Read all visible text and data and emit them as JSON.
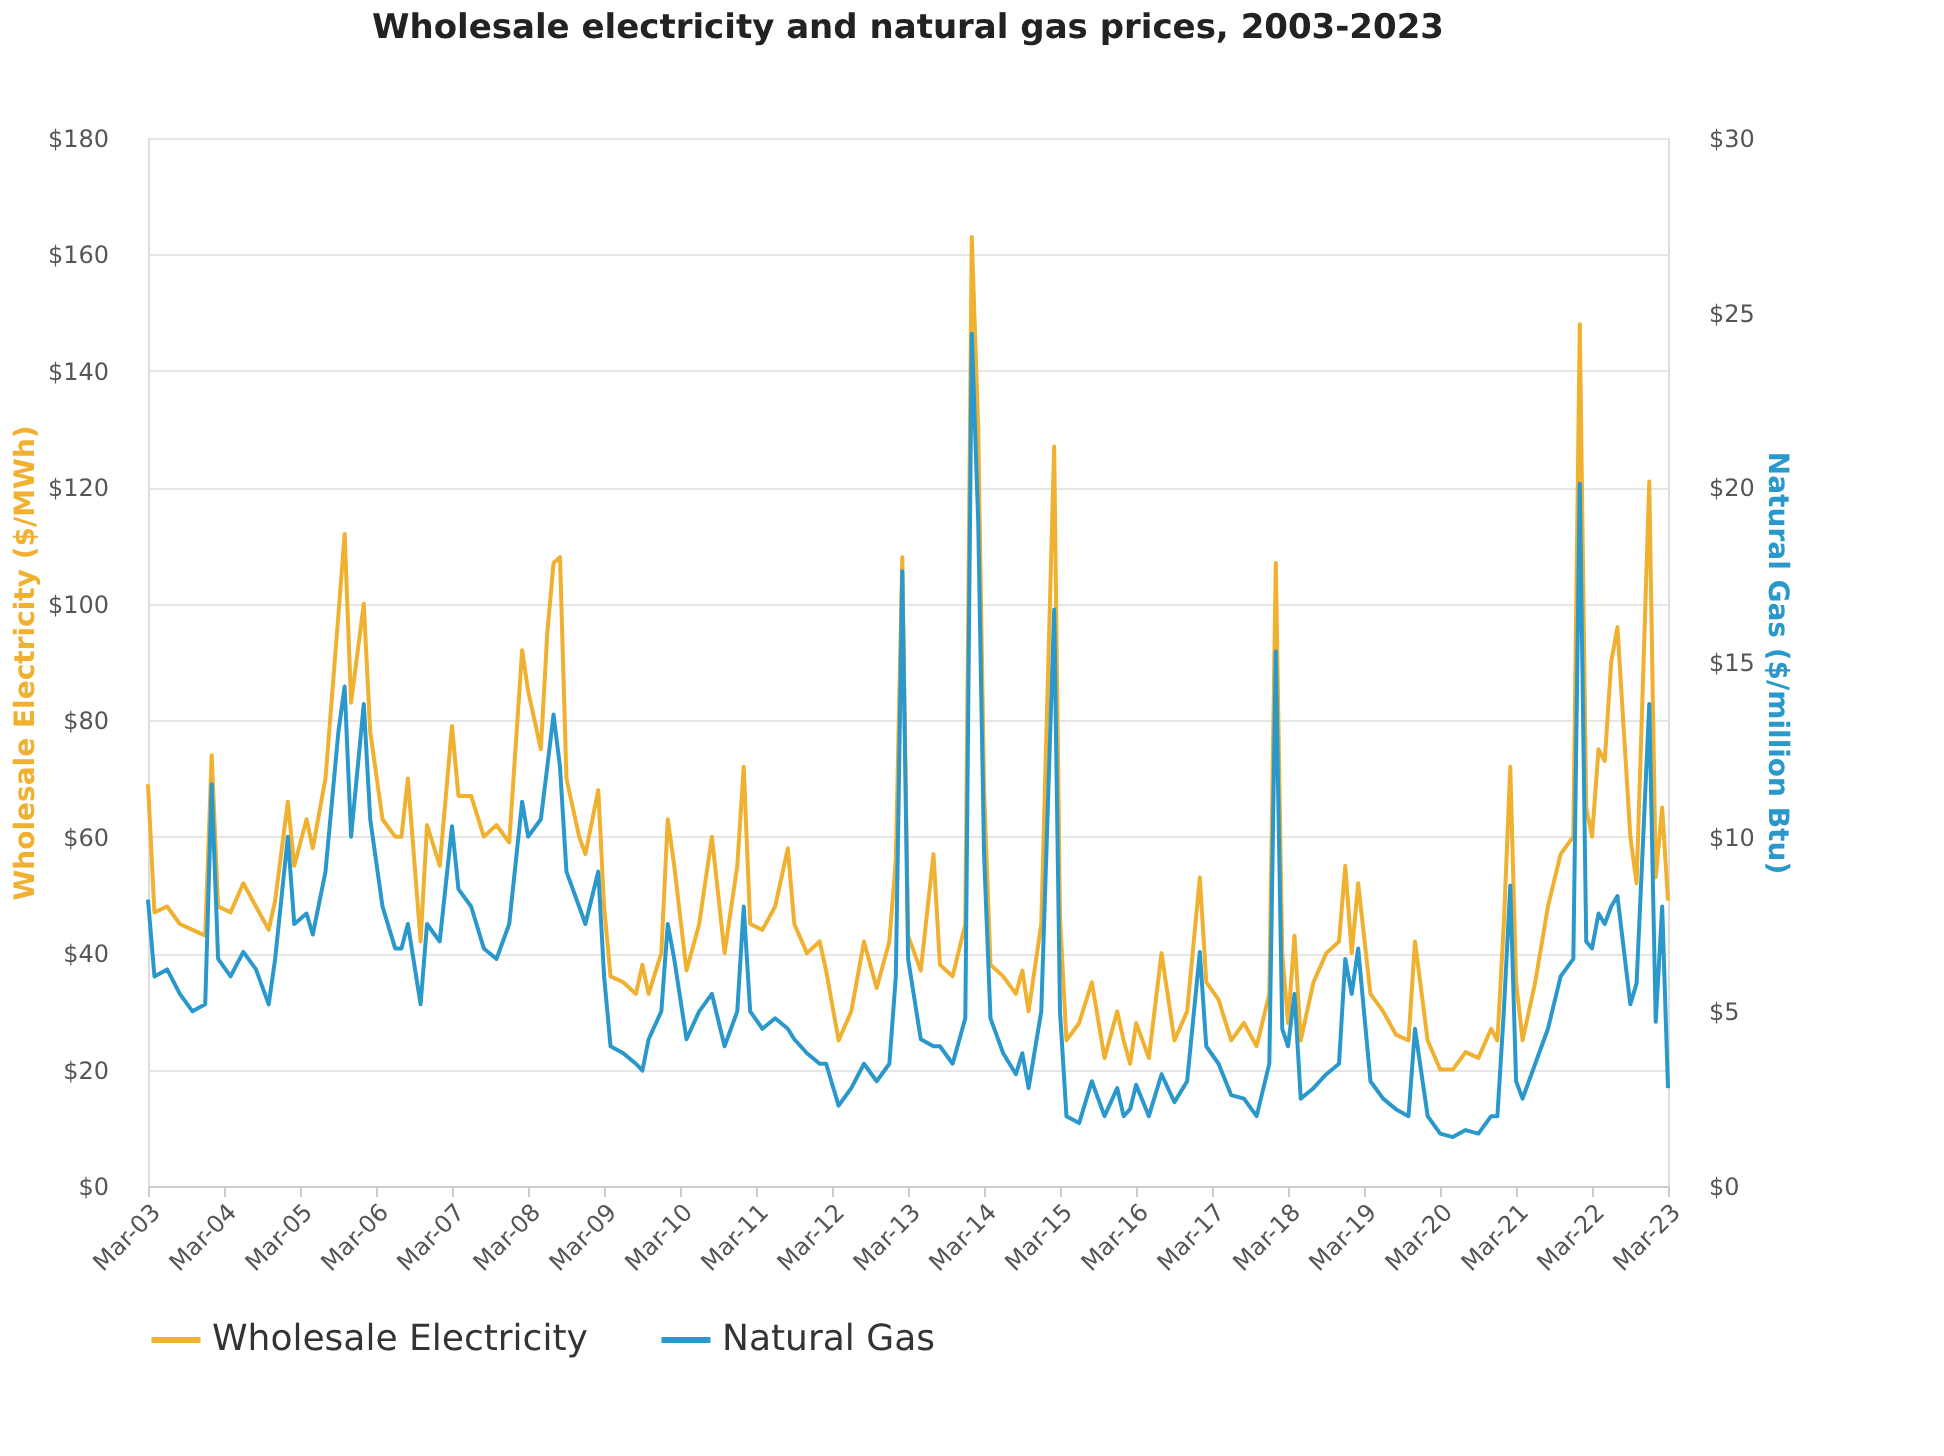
{
  "chart_data": {
    "type": "line",
    "title": "Wholesale electricity and natural gas prices, 2003-2023",
    "ylabel": "Wholesale Electricity ($/MWh)",
    "y2label": "Natural Gas ($/million Btu)",
    "x": [
      "2003-03",
      "2003-04",
      "2003-06",
      "2003-08",
      "2003-10",
      "2003-12",
      "2004-01",
      "2004-02",
      "2004-04",
      "2004-06",
      "2004-08",
      "2004-10",
      "2004-11",
      "2005-01",
      "2005-02",
      "2005-04",
      "2005-05",
      "2005-07",
      "2005-09",
      "2005-10",
      "2005-11",
      "2006-01",
      "2006-02",
      "2006-04",
      "2006-06",
      "2006-07",
      "2006-08",
      "2006-10",
      "2006-11",
      "2007-01",
      "2007-03",
      "2007-04",
      "2007-06",
      "2007-08",
      "2007-10",
      "2007-12",
      "2008-02",
      "2008-03",
      "2008-05",
      "2008-06",
      "2008-07",
      "2008-08",
      "2008-09",
      "2008-11",
      "2008-12",
      "2009-02",
      "2009-03",
      "2009-04",
      "2009-06",
      "2009-08",
      "2009-09",
      "2009-10",
      "2009-12",
      "2010-01",
      "2010-02",
      "2010-04",
      "2010-06",
      "2010-08",
      "2010-10",
      "2010-12",
      "2011-01",
      "2011-02",
      "2011-04",
      "2011-06",
      "2011-08",
      "2011-09",
      "2011-11",
      "2012-01",
      "2012-02",
      "2012-04",
      "2012-06",
      "2012-08",
      "2012-10",
      "2012-12",
      "2013-01",
      "2013-02",
      "2013-03",
      "2013-05",
      "2013-07",
      "2013-08",
      "2013-10",
      "2013-12",
      "2014-01",
      "2014-02",
      "2014-03",
      "2014-04",
      "2014-06",
      "2014-08",
      "2014-09",
      "2014-10",
      "2014-12",
      "2015-02",
      "2015-03",
      "2015-04",
      "2015-06",
      "2015-08",
      "2015-10",
      "2015-12",
      "2016-01",
      "2016-02",
      "2016-03",
      "2016-05",
      "2016-07",
      "2016-09",
      "2016-11",
      "2017-01",
      "2017-02",
      "2017-04",
      "2017-06",
      "2017-08",
      "2017-10",
      "2017-12",
      "2018-01",
      "2018-02",
      "2018-03",
      "2018-04",
      "2018-05",
      "2018-07",
      "2018-09",
      "2018-11",
      "2018-12",
      "2019-01",
      "2019-02",
      "2019-04",
      "2019-06",
      "2019-08",
      "2019-10",
      "2019-11",
      "2020-01",
      "2020-03",
      "2020-05",
      "2020-07",
      "2020-09",
      "2020-11",
      "2020-12",
      "2021-01",
      "2021-02",
      "2021-03",
      "2021-04",
      "2021-06",
      "2021-08",
      "2021-10",
      "2021-12",
      "2022-01",
      "2022-02",
      "2022-03",
      "2022-04",
      "2022-05",
      "2022-06",
      "2022-07",
      "2022-09",
      "2022-10",
      "2022-12",
      "2023-01",
      "2023-02",
      "2023-03"
    ],
    "series": [
      {
        "name": "Wholesale Electricity",
        "color": "#f0b030",
        "values": [
          69,
          47,
          48,
          45,
          44,
          43,
          74,
          48,
          47,
          52,
          48,
          44,
          49,
          66,
          55,
          63,
          58,
          70,
          98,
          112,
          83,
          100,
          78,
          63,
          60,
          60,
          70,
          42,
          62,
          55,
          79,
          67,
          67,
          60,
          62,
          59,
          92,
          85,
          75,
          95,
          107,
          108,
          70,
          60,
          57,
          68,
          48,
          36,
          35,
          33,
          38,
          33,
          40,
          63,
          55,
          37,
          45,
          60,
          40,
          55,
          72,
          45,
          44,
          48,
          58,
          45,
          40,
          42,
          37,
          25,
          30,
          42,
          34,
          42,
          56,
          108,
          43,
          37,
          57,
          38,
          36,
          45,
          163,
          130,
          68,
          38,
          36,
          33,
          37,
          30,
          45,
          127,
          46,
          25,
          28,
          35,
          22,
          30,
          25,
          21,
          28,
          22,
          40,
          25,
          30,
          53,
          35,
          32,
          25,
          28,
          24,
          33,
          107,
          40,
          28,
          43,
          25,
          35,
          40,
          42,
          55,
          40,
          52,
          33,
          30,
          26,
          25,
          42,
          25,
          20,
          20,
          23,
          22,
          27,
          25,
          45,
          72,
          35,
          25,
          35,
          48,
          57,
          60,
          148,
          65,
          60,
          75,
          73,
          90,
          96,
          60,
          52,
          121,
          53,
          65,
          49
        ]
      },
      {
        "name": "Natural Gas",
        "color": "#2b98cc",
        "axis": "y2",
        "values": [
          8.2,
          6.0,
          6.2,
          5.5,
          5.0,
          5.2,
          11.5,
          6.5,
          6.0,
          6.7,
          6.2,
          5.2,
          6.5,
          10.0,
          7.5,
          7.8,
          7.2,
          9.0,
          13.0,
          14.3,
          10.0,
          13.8,
          10.5,
          8.0,
          6.8,
          6.8,
          7.5,
          5.2,
          7.5,
          7.0,
          10.3,
          8.5,
          8.0,
          6.8,
          6.5,
          7.5,
          11.0,
          10.0,
          10.5,
          12.0,
          13.5,
          12.0,
          9.0,
          8.0,
          7.5,
          9.0,
          6.0,
          4.0,
          3.8,
          3.5,
          3.3,
          4.2,
          5.0,
          7.5,
          6.5,
          4.2,
          5.0,
          5.5,
          4.0,
          5.0,
          8.0,
          5.0,
          4.5,
          4.8,
          4.5,
          4.2,
          3.8,
          3.5,
          3.5,
          2.3,
          2.8,
          3.5,
          3.0,
          3.5,
          6.0,
          17.6,
          6.5,
          4.2,
          4.0,
          4.0,
          3.5,
          4.8,
          24.4,
          19.0,
          9.5,
          4.8,
          3.8,
          3.2,
          3.8,
          2.8,
          5.0,
          16.5,
          5.0,
          2.0,
          1.8,
          3.0,
          2.0,
          2.8,
          2.0,
          2.2,
          2.9,
          2.0,
          3.2,
          2.4,
          3.0,
          6.7,
          4.0,
          3.5,
          2.6,
          2.5,
          2.0,
          3.5,
          15.3,
          4.5,
          4.0,
          5.5,
          2.5,
          2.8,
          3.2,
          3.5,
          6.5,
          5.5,
          6.8,
          3.0,
          2.5,
          2.2,
          2.0,
          4.5,
          2.0,
          1.5,
          1.4,
          1.6,
          1.5,
          2.0,
          2.0,
          5.0,
          8.6,
          3.0,
          2.5,
          3.5,
          4.5,
          6.0,
          6.5,
          20.1,
          7.0,
          6.8,
          7.8,
          7.5,
          8.0,
          8.3,
          5.2,
          5.8,
          13.8,
          4.7,
          8.0,
          2.8
        ]
      }
    ],
    "xlim": [
      "2003-03",
      "2023-03"
    ],
    "xticks": [
      {
        "value": "2003-03",
        "label": "Mar-03"
      },
      {
        "value": "2004-03",
        "label": "Mar-04"
      },
      {
        "value": "2005-03",
        "label": "Mar-05"
      },
      {
        "value": "2006-03",
        "label": "Mar-06"
      },
      {
        "value": "2007-03",
        "label": "Mar-07"
      },
      {
        "value": "2008-03",
        "label": "Mar-08"
      },
      {
        "value": "2009-03",
        "label": "Mar-09"
      },
      {
        "value": "2010-03",
        "label": "Mar-10"
      },
      {
        "value": "2011-03",
        "label": "Mar-11"
      },
      {
        "value": "2012-03",
        "label": "Mar-12"
      },
      {
        "value": "2013-03",
        "label": "Mar-13"
      },
      {
        "value": "2014-03",
        "label": "Mar-14"
      },
      {
        "value": "2015-03",
        "label": "Mar-15"
      },
      {
        "value": "2016-03",
        "label": "Mar-16"
      },
      {
        "value": "2017-03",
        "label": "Mar-17"
      },
      {
        "value": "2018-03",
        "label": "Mar-18"
      },
      {
        "value": "2019-03",
        "label": "Mar-19"
      },
      {
        "value": "2020-03",
        "label": "Mar-20"
      },
      {
        "value": "2021-03",
        "label": "Mar-21"
      },
      {
        "value": "2022-03",
        "label": "Mar-22"
      },
      {
        "value": "2023-03",
        "label": "Mar-23"
      }
    ],
    "ylim": [
      0,
      180
    ],
    "yticks": [
      {
        "value": 0,
        "label": "$0"
      },
      {
        "value": 20,
        "label": "$20"
      },
      {
        "value": 40,
        "label": "$40"
      },
      {
        "value": 60,
        "label": "$60"
      },
      {
        "value": 80,
        "label": "$80"
      },
      {
        "value": 100,
        "label": "$100"
      },
      {
        "value": 120,
        "label": "$120"
      },
      {
        "value": 140,
        "label": "$140"
      },
      {
        "value": 160,
        "label": "$160"
      },
      {
        "value": 180,
        "label": "$180"
      }
    ],
    "y2lim": [
      0,
      30
    ],
    "y2ticks": [
      {
        "value": 0,
        "label": "$0"
      },
      {
        "value": 5,
        "label": "$5"
      },
      {
        "value": 10,
        "label": "$10"
      },
      {
        "value": 15,
        "label": "$15"
      },
      {
        "value": 20,
        "label": "$20"
      },
      {
        "value": 25,
        "label": "$25"
      },
      {
        "value": 30,
        "label": "$30"
      }
    ],
    "grid": "y",
    "legend": "bottom",
    "marker": "none",
    "line_style": "solid"
  }
}
